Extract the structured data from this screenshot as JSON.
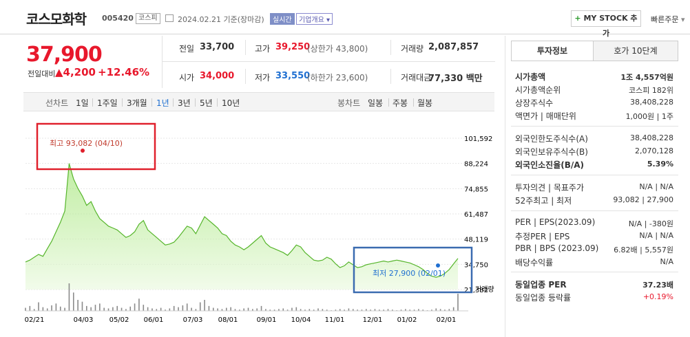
{
  "header": {
    "company": "코스모화학",
    "code": "005420",
    "market": "코스피",
    "date": "2024.02.21 기준(장마감)",
    "realtime": "실시간",
    "corp_overview": "기업개요",
    "my_stock": "MY STOCK 추가",
    "my_stock_plus": "+",
    "quick_order": "빠른주문"
  },
  "quote": {
    "price": "37,900",
    "change_label": "전일대비",
    "change": "▲4,200",
    "change_pct": "+12.46%",
    "prev_label": "전일",
    "prev": "33,700",
    "high_label": "고가",
    "high": "39,250",
    "upper_limit": "(상한가 43,800)",
    "volume_label": "거래량",
    "volume": "2,087,857",
    "open_label": "시가",
    "open": "34,000",
    "low_label": "저가",
    "low": "33,550",
    "lower_limit": "(하한가 23,600)",
    "amount_label": "거래대금",
    "amount": "77,330 백만"
  },
  "period_bar": {
    "line_label": "선차트",
    "line_items": [
      "1일",
      "1주일",
      "3개월",
      "1년",
      "3년",
      "5년",
      "10년"
    ],
    "active": "1년",
    "candle_label": "봉차트",
    "candle_items": [
      "일봉",
      "주봉",
      "월봉"
    ]
  },
  "chart_data": {
    "type": "area",
    "title": "",
    "y_ticks": [
      "101,592",
      "88,224",
      "74,855",
      "61,487",
      "48,119",
      "34,750",
      "21,382"
    ],
    "ylim": [
      21382,
      101592
    ],
    "x_ticks": [
      "02/21",
      "04/03",
      "05/02",
      "06/01",
      "07/03",
      "08/01",
      "09/01",
      "10/04",
      "11/01",
      "12/01",
      "01/02",
      "02/01"
    ],
    "volume_label": "거래량",
    "high_annotation": "최고 93,082 (04/10)",
    "low_annotation": "최저 27,900 (02/01)",
    "color": "#6ccf3a",
    "values": [
      36000,
      37000,
      38500,
      40000,
      39000,
      43000,
      47000,
      52000,
      57000,
      63000,
      88224,
      80000,
      75000,
      71000,
      66000,
      68000,
      63000,
      59000,
      57000,
      55000,
      54000,
      53000,
      51000,
      49000,
      50000,
      52000,
      56000,
      58000,
      53000,
      51000,
      49000,
      47000,
      45000,
      45500,
      46500,
      49000,
      52000,
      55000,
      54000,
      51000,
      55500,
      60000,
      58000,
      56000,
      54000,
      51000,
      50000,
      47000,
      45000,
      44000,
      42500,
      44000,
      46000,
      48000,
      50000,
      46000,
      44000,
      43000,
      42000,
      41000,
      39500,
      42000,
      45000,
      44000,
      41000,
      39000,
      37000,
      36500,
      37000,
      38500,
      37500,
      35000,
      33000,
      34000,
      36000,
      34500,
      33000,
      33500,
      34500,
      35000,
      35500,
      36000,
      36500,
      36000,
      36500,
      37000,
      36500,
      36000,
      35500,
      34500,
      33500,
      32000,
      30000,
      28500,
      27900,
      28500,
      30000,
      32000,
      35000,
      37900
    ]
  },
  "volume_bars": [
    5,
    8,
    3,
    14,
    6,
    4,
    9,
    12,
    7,
    5,
    45,
    30,
    18,
    15,
    8,
    6,
    10,
    12,
    5,
    4,
    6,
    8,
    5,
    3,
    7,
    12,
    20,
    10,
    6,
    4,
    3,
    5,
    2,
    4,
    8,
    6,
    9,
    12,
    5,
    3,
    14,
    18,
    8,
    5,
    4,
    3,
    5,
    6,
    3,
    2,
    4,
    5,
    3,
    4,
    8,
    3,
    2,
    2,
    3,
    4,
    2,
    5,
    6,
    3,
    2,
    3,
    2,
    4,
    3,
    2,
    1,
    2,
    3,
    2,
    4,
    3,
    2,
    2,
    3,
    2,
    3,
    2,
    2,
    3,
    2,
    1,
    2,
    3,
    2,
    2,
    3,
    2,
    1,
    2,
    4,
    3,
    2,
    3,
    6,
    28
  ],
  "right_panel": {
    "tab_invest": "투자정보",
    "tab_orderbook": "호가 10단계",
    "rows": [
      {
        "label": "시가총액",
        "value": "1조 4,557억원",
        "bold": true
      },
      {
        "label": "시가총액순위",
        "value": "코스피 182위"
      },
      {
        "label": "상장주식수",
        "value": "38,408,228"
      },
      {
        "label": "액면가 | 매매단위",
        "value": "1,000원 | 1주"
      },
      {
        "label": "외국인한도주식수(A)",
        "value": "38,408,228"
      },
      {
        "label": "외국인보유주식수(B)",
        "value": "2,070,128"
      },
      {
        "label": "외국인소진율(B/A)",
        "value": "5.39%",
        "bold": true
      },
      {
        "label": "투자의견 | 목표주가",
        "value": "N/A | N/A"
      },
      {
        "label": "52주최고 | 최저",
        "value": "93,082 | 27,900"
      },
      {
        "label": "PER | EPS(2023.09)",
        "value": "N/A | -380원"
      },
      {
        "label": "추정PER | EPS",
        "value": "N/A | N/A"
      },
      {
        "label": "PBR | BPS (2023.09)",
        "value": "6.82배 | 5,557원"
      },
      {
        "label": "배당수익률",
        "value": "N/A"
      },
      {
        "label": "동일업종 PER",
        "value": "37.23배",
        "bold": true
      },
      {
        "label": "동일업종 등락률",
        "value": "+0.19%",
        "red": true
      }
    ]
  }
}
